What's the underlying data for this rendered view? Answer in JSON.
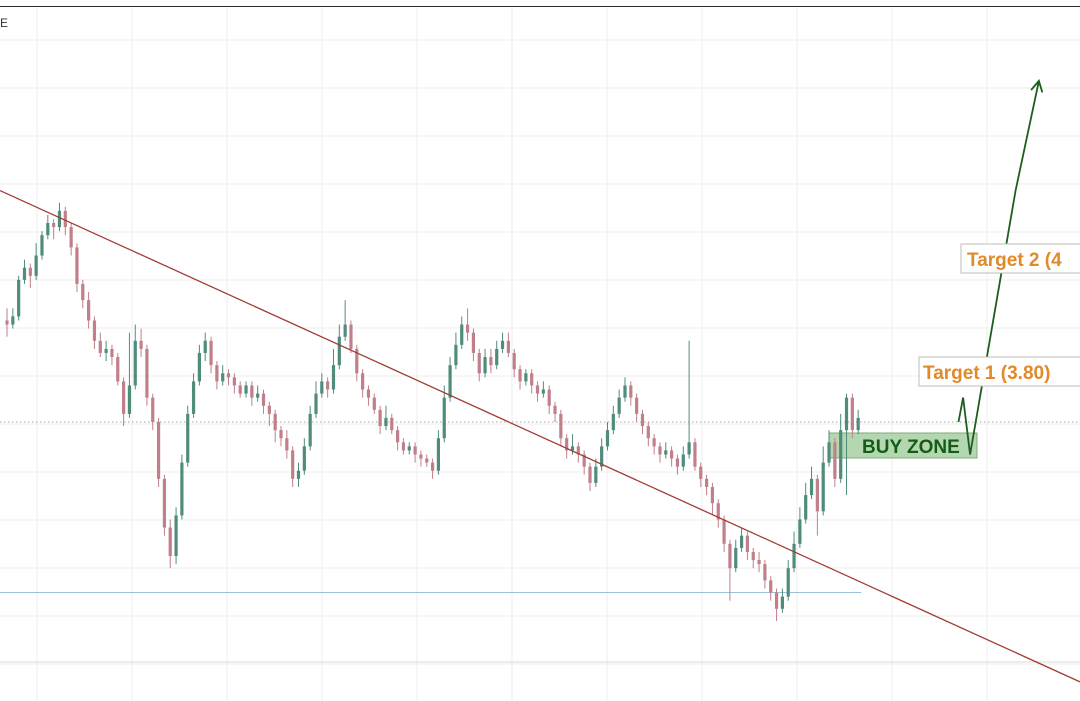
{
  "corner_glyph": "E",
  "chart_data": {
    "type": "candlestick",
    "colors": {
      "up": "#4f8c7c",
      "down": "#c07f89",
      "trendline": "#a13d33",
      "grid": "#ececec",
      "support_line": "#9cc1d6",
      "dotted_level": "#a8a8a8",
      "target_label": "#e08a2a",
      "buy_zone_text": "#145d15",
      "buy_zone_fill": "#a7cfa2",
      "arrow": "#1d5e1f"
    },
    "annotations": {
      "target2": "Target 2 (4",
      "target1": "Target 1 (3.80)",
      "buy_zone": "BUY ZONE"
    },
    "trendline": {
      "from": [
        0,
        3.95
      ],
      "to": [
        180,
        2.74
      ]
    },
    "support_level": 2.96,
    "dotted_level": 3.38,
    "projection_path": [
      [
        163.2,
        3.38
      ],
      [
        164.0,
        3.44
      ],
      [
        165.2,
        3.3
      ],
      [
        173.0,
        3.95
      ],
      [
        177.0,
        4.22
      ]
    ],
    "ylim": [
      2.72,
      4.37
    ],
    "xlim": [
      0,
      180
    ],
    "candles": [
      [
        0,
        3.63,
        3.62,
        3.66,
        3.59
      ],
      [
        1,
        3.62,
        3.64,
        3.66,
        3.61
      ],
      [
        2,
        3.64,
        3.73,
        3.74,
        3.63
      ],
      [
        3,
        3.73,
        3.76,
        3.78,
        3.72
      ],
      [
        4,
        3.76,
        3.74,
        3.77,
        3.71
      ],
      [
        5,
        3.74,
        3.79,
        3.82,
        3.73
      ],
      [
        6,
        3.79,
        3.84,
        3.85,
        3.78
      ],
      [
        7,
        3.84,
        3.87,
        3.89,
        3.83
      ],
      [
        8,
        3.87,
        3.86,
        3.88,
        3.83
      ],
      [
        9,
        3.86,
        3.9,
        3.92,
        3.85
      ],
      [
        10,
        3.9,
        3.86,
        3.91,
        3.84
      ],
      [
        11,
        3.86,
        3.81,
        3.87,
        3.79
      ],
      [
        12,
        3.81,
        3.72,
        3.82,
        3.7
      ],
      [
        13,
        3.72,
        3.68,
        3.73,
        3.66
      ],
      [
        14,
        3.68,
        3.63,
        3.7,
        3.61
      ],
      [
        15,
        3.63,
        3.58,
        3.64,
        3.56
      ],
      [
        16,
        3.58,
        3.55,
        3.6,
        3.54
      ],
      [
        17,
        3.55,
        3.56,
        3.58,
        3.53
      ],
      [
        18,
        3.56,
        3.54,
        3.57,
        3.52
      ],
      [
        19,
        3.54,
        3.48,
        3.55,
        3.47
      ],
      [
        20,
        3.48,
        3.4,
        3.49,
        3.37
      ],
      [
        21,
        3.4,
        3.47,
        3.6,
        3.39
      ],
      [
        22,
        3.47,
        3.58,
        3.62,
        3.46
      ],
      [
        23,
        3.58,
        3.56,
        3.61,
        3.54
      ],
      [
        24,
        3.56,
        3.44,
        3.57,
        3.42
      ],
      [
        25,
        3.44,
        3.38,
        3.45,
        3.36
      ],
      [
        26,
        3.38,
        3.24,
        3.39,
        3.22
      ],
      [
        27,
        3.24,
        3.12,
        3.25,
        3.1
      ],
      [
        28,
        3.12,
        3.05,
        3.14,
        3.02
      ],
      [
        29,
        3.05,
        3.15,
        3.17,
        3.03
      ],
      [
        30,
        3.15,
        3.28,
        3.3,
        3.14
      ],
      [
        31,
        3.28,
        3.4,
        3.42,
        3.27
      ],
      [
        32,
        3.4,
        3.48,
        3.5,
        3.39
      ],
      [
        33,
        3.48,
        3.55,
        3.57,
        3.47
      ],
      [
        34,
        3.55,
        3.58,
        3.6,
        3.53
      ],
      [
        35,
        3.58,
        3.52,
        3.59,
        3.5
      ],
      [
        36,
        3.52,
        3.48,
        3.53,
        3.46
      ],
      [
        37,
        3.48,
        3.5,
        3.52,
        3.47
      ],
      [
        38,
        3.5,
        3.49,
        3.51,
        3.47
      ],
      [
        39,
        3.49,
        3.47,
        3.5,
        3.45
      ],
      [
        40,
        3.47,
        3.45,
        3.48,
        3.44
      ],
      [
        41,
        3.45,
        3.47,
        3.48,
        3.44
      ],
      [
        42,
        3.47,
        3.44,
        3.48,
        3.42
      ],
      [
        43,
        3.44,
        3.45,
        3.47,
        3.43
      ],
      [
        44,
        3.45,
        3.42,
        3.46,
        3.4
      ],
      [
        45,
        3.42,
        3.4,
        3.43,
        3.37
      ],
      [
        46,
        3.4,
        3.36,
        3.41,
        3.33
      ],
      [
        47,
        3.36,
        3.34,
        3.37,
        3.32
      ],
      [
        48,
        3.34,
        3.31,
        3.36,
        3.29
      ],
      [
        49,
        3.31,
        3.24,
        3.32,
        3.22
      ],
      [
        50,
        3.24,
        3.26,
        3.28,
        3.22
      ],
      [
        51,
        3.26,
        3.32,
        3.34,
        3.25
      ],
      [
        52,
        3.32,
        3.4,
        3.42,
        3.31
      ],
      [
        53,
        3.4,
        3.45,
        3.48,
        3.39
      ],
      [
        54,
        3.45,
        3.48,
        3.5,
        3.44
      ],
      [
        55,
        3.48,
        3.46,
        3.49,
        3.44
      ],
      [
        56,
        3.46,
        3.52,
        3.56,
        3.45
      ],
      [
        57,
        3.52,
        3.59,
        3.62,
        3.51
      ],
      [
        58,
        3.59,
        3.62,
        3.68,
        3.58
      ],
      [
        59,
        3.62,
        3.56,
        3.63,
        3.55
      ],
      [
        60,
        3.56,
        3.5,
        3.57,
        3.48
      ],
      [
        61,
        3.5,
        3.46,
        3.51,
        3.44
      ],
      [
        62,
        3.46,
        3.44,
        3.47,
        3.42
      ],
      [
        63,
        3.44,
        3.41,
        3.45,
        3.4
      ],
      [
        64,
        3.41,
        3.37,
        3.42,
        3.35
      ],
      [
        65,
        3.37,
        3.39,
        3.42,
        3.36
      ],
      [
        66,
        3.39,
        3.36,
        3.4,
        3.35
      ],
      [
        67,
        3.36,
        3.33,
        3.37,
        3.31
      ],
      [
        68,
        3.33,
        3.31,
        3.34,
        3.3
      ],
      [
        69,
        3.31,
        3.32,
        3.33,
        3.3
      ],
      [
        70,
        3.32,
        3.3,
        3.33,
        3.28
      ],
      [
        71,
        3.3,
        3.29,
        3.31,
        3.27
      ],
      [
        72,
        3.29,
        3.28,
        3.3,
        3.27
      ],
      [
        73,
        3.28,
        3.26,
        3.29,
        3.24
      ],
      [
        74,
        3.26,
        3.34,
        3.36,
        3.25
      ],
      [
        75,
        3.34,
        3.44,
        3.47,
        3.33
      ],
      [
        76,
        3.44,
        3.52,
        3.54,
        3.43
      ],
      [
        77,
        3.52,
        3.57,
        3.6,
        3.51
      ],
      [
        78,
        3.57,
        3.62,
        3.64,
        3.56
      ],
      [
        79,
        3.62,
        3.6,
        3.66,
        3.58
      ],
      [
        80,
        3.6,
        3.55,
        3.61,
        3.53
      ],
      [
        81,
        3.55,
        3.5,
        3.56,
        3.48
      ],
      [
        82,
        3.5,
        3.54,
        3.56,
        3.49
      ],
      [
        83,
        3.54,
        3.52,
        3.56,
        3.5
      ],
      [
        84,
        3.52,
        3.56,
        3.58,
        3.51
      ],
      [
        85,
        3.56,
        3.58,
        3.6,
        3.55
      ],
      [
        86,
        3.58,
        3.55,
        3.6,
        3.54
      ],
      [
        87,
        3.55,
        3.51,
        3.56,
        3.49
      ],
      [
        88,
        3.51,
        3.48,
        3.52,
        3.46
      ],
      [
        89,
        3.48,
        3.5,
        3.51,
        3.47
      ],
      [
        90,
        3.5,
        3.47,
        3.51,
        3.45
      ],
      [
        91,
        3.47,
        3.45,
        3.48,
        3.43
      ],
      [
        92,
        3.45,
        3.46,
        3.48,
        3.44
      ],
      [
        93,
        3.46,
        3.42,
        3.47,
        3.4
      ],
      [
        94,
        3.42,
        3.4,
        3.43,
        3.38
      ],
      [
        95,
        3.4,
        3.34,
        3.41,
        3.32
      ],
      [
        96,
        3.34,
        3.31,
        3.35,
        3.29
      ],
      [
        97,
        3.31,
        3.32,
        3.35,
        3.3
      ],
      [
        98,
        3.32,
        3.3,
        3.33,
        3.28
      ],
      [
        99,
        3.3,
        3.27,
        3.31,
        3.25
      ],
      [
        100,
        3.27,
        3.23,
        3.28,
        3.21
      ],
      [
        101,
        3.23,
        3.27,
        3.29,
        3.22
      ],
      [
        102,
        3.27,
        3.32,
        3.34,
        3.26
      ],
      [
        103,
        3.32,
        3.36,
        3.38,
        3.31
      ],
      [
        104,
        3.36,
        3.4,
        3.42,
        3.35
      ],
      [
        105,
        3.4,
        3.44,
        3.46,
        3.39
      ],
      [
        106,
        3.44,
        3.47,
        3.49,
        3.43
      ],
      [
        107,
        3.47,
        3.44,
        3.48,
        3.42
      ],
      [
        108,
        3.44,
        3.4,
        3.45,
        3.38
      ],
      [
        109,
        3.4,
        3.37,
        3.41,
        3.35
      ],
      [
        110,
        3.37,
        3.34,
        3.38,
        3.32
      ],
      [
        111,
        3.34,
        3.32,
        3.35,
        3.3
      ],
      [
        112,
        3.32,
        3.3,
        3.33,
        3.28
      ],
      [
        113,
        3.3,
        3.31,
        3.33,
        3.29
      ],
      [
        114,
        3.31,
        3.29,
        3.32,
        3.27
      ],
      [
        115,
        3.29,
        3.27,
        3.3,
        3.25
      ],
      [
        116,
        3.27,
        3.3,
        3.32,
        3.26
      ],
      [
        117,
        3.3,
        3.33,
        3.58,
        3.29
      ],
      [
        118,
        3.33,
        3.27,
        3.34,
        3.26
      ],
      [
        119,
        3.27,
        3.24,
        3.28,
        3.22
      ],
      [
        120,
        3.24,
        3.22,
        3.25,
        3.2
      ],
      [
        121,
        3.22,
        3.18,
        3.23,
        3.15
      ],
      [
        122,
        3.18,
        3.14,
        3.19,
        3.12
      ],
      [
        123,
        3.14,
        3.08,
        3.15,
        3.06
      ],
      [
        124,
        3.08,
        3.02,
        3.09,
        2.94
      ],
      [
        125,
        3.02,
        3.07,
        3.09,
        3.01
      ],
      [
        126,
        3.07,
        3.1,
        3.12,
        3.06
      ],
      [
        127,
        3.1,
        3.06,
        3.11,
        3.04
      ],
      [
        128,
        3.06,
        3.04,
        3.07,
        3.02
      ],
      [
        129,
        3.04,
        3.03,
        3.06,
        3.01
      ],
      [
        130,
        3.03,
        2.99,
        3.04,
        2.97
      ],
      [
        131,
        2.99,
        2.96,
        3.0,
        2.94
      ],
      [
        132,
        2.96,
        2.92,
        2.97,
        2.89
      ],
      [
        133,
        2.92,
        2.95,
        2.97,
        2.91
      ],
      [
        134,
        2.95,
        3.02,
        3.04,
        2.94
      ],
      [
        135,
        3.02,
        3.08,
        3.11,
        3.01
      ],
      [
        136,
        3.08,
        3.14,
        3.17,
        3.07
      ],
      [
        137,
        3.14,
        3.2,
        3.23,
        3.13
      ],
      [
        138,
        3.2,
        3.24,
        3.27,
        3.19
      ],
      [
        139,
        3.24,
        3.16,
        3.25,
        3.1
      ],
      [
        140,
        3.16,
        3.28,
        3.32,
        3.15
      ],
      [
        141,
        3.28,
        3.33,
        3.36,
        3.27
      ],
      [
        142,
        3.33,
        3.24,
        3.34,
        3.22
      ],
      [
        143,
        3.24,
        3.36,
        3.4,
        3.23
      ],
      [
        144,
        3.36,
        3.44,
        3.45,
        3.2
      ],
      [
        145,
        3.44,
        3.36,
        3.45,
        3.34
      ],
      [
        146,
        3.36,
        3.39,
        3.41,
        3.35
      ]
    ]
  }
}
